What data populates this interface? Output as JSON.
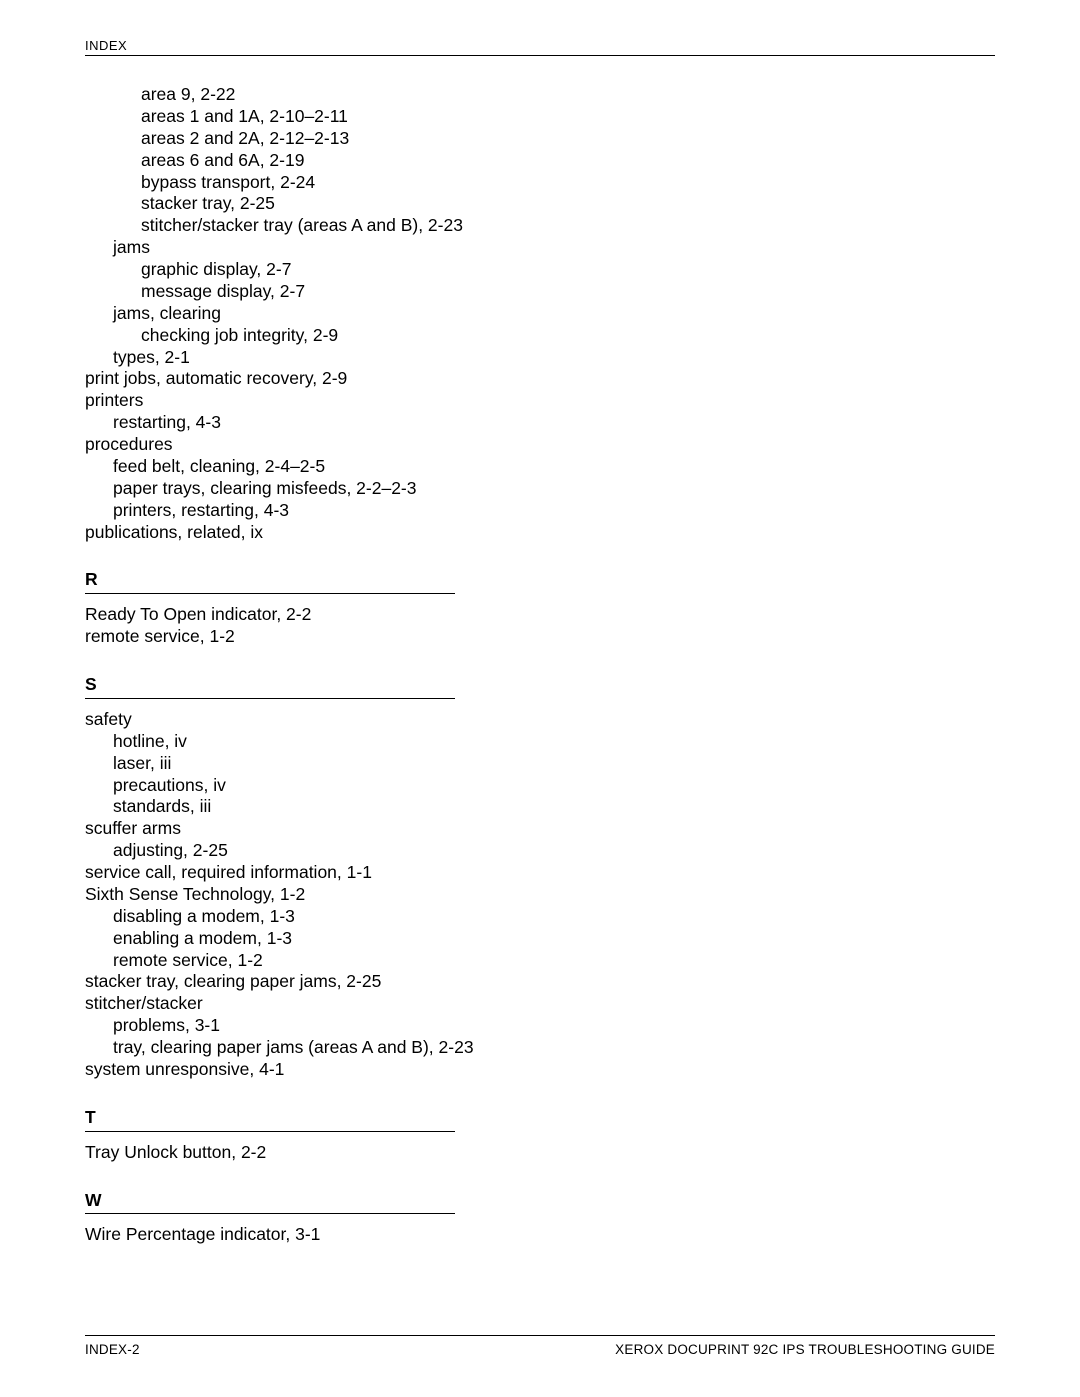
{
  "header": {
    "title": "INDEX"
  },
  "footer": {
    "left": "INDEX-2",
    "right": "XEROX DOCUPRINT 92C IPS TROUBLESHOOTING GUIDE"
  },
  "top_block": [
    {
      "indent": 2,
      "text": "area 9, 2-22"
    },
    {
      "indent": 2,
      "text": "areas 1 and 1A, 2-10–2-11"
    },
    {
      "indent": 2,
      "text": "areas 2 and 2A, 2-12–2-13"
    },
    {
      "indent": 2,
      "text": "areas 6 and 6A, 2-19"
    },
    {
      "indent": 2,
      "text": "bypass transport, 2-24"
    },
    {
      "indent": 2,
      "text": "stacker tray, 2-25"
    },
    {
      "indent": 2,
      "text": "stitcher/stacker tray (areas A and B), 2-23"
    },
    {
      "indent": 1,
      "text": "jams"
    },
    {
      "indent": 2,
      "text": "graphic display, 2-7"
    },
    {
      "indent": 2,
      "text": "message display, 2-7"
    },
    {
      "indent": 1,
      "text": "jams, clearing"
    },
    {
      "indent": 2,
      "text": "checking job integrity, 2-9"
    },
    {
      "indent": 1,
      "text": "types, 2-1"
    },
    {
      "indent": 0,
      "text": "print jobs, automatic recovery, 2-9"
    },
    {
      "indent": 0,
      "text": "printers"
    },
    {
      "indent": 1,
      "text": "restarting, 4-3"
    },
    {
      "indent": 0,
      "text": "procedures"
    },
    {
      "indent": 1,
      "text": "feed belt, cleaning, 2-4–2-5"
    },
    {
      "indent": 1,
      "text": "paper trays, clearing misfeeds, 2-2–2-3"
    },
    {
      "indent": 1,
      "text": "printers, restarting, 4-3"
    },
    {
      "indent": 0,
      "text": "publications, related, ix"
    }
  ],
  "sections": [
    {
      "letter": "R",
      "entries": [
        {
          "indent": 0,
          "text": "Ready To Open indicator, 2-2"
        },
        {
          "indent": 0,
          "text": "remote service, 1-2"
        }
      ]
    },
    {
      "letter": "S",
      "entries": [
        {
          "indent": 0,
          "text": "safety"
        },
        {
          "indent": 1,
          "text": "hotline, iv"
        },
        {
          "indent": 1,
          "text": "laser, iii"
        },
        {
          "indent": 1,
          "text": "precautions, iv"
        },
        {
          "indent": 1,
          "text": "standards, iii"
        },
        {
          "indent": 0,
          "text": "scuffer arms"
        },
        {
          "indent": 1,
          "text": "adjusting, 2-25"
        },
        {
          "indent": 0,
          "text": "service call, required information, 1-1"
        },
        {
          "indent": 0,
          "text": "Sixth Sense Technology, 1-2"
        },
        {
          "indent": 1,
          "text": "disabling a modem, 1-3"
        },
        {
          "indent": 1,
          "text": "enabling a modem, 1-3"
        },
        {
          "indent": 1,
          "text": "remote service, 1-2"
        },
        {
          "indent": 0,
          "text": "stacker tray, clearing paper jams, 2-25"
        },
        {
          "indent": 0,
          "text": "stitcher/stacker"
        },
        {
          "indent": 1,
          "text": "problems, 3-1"
        },
        {
          "indent": 1,
          "text": "tray, clearing paper jams (areas A and B), 2-23"
        },
        {
          "indent": 0,
          "text": "system unresponsive, 4-1"
        }
      ]
    },
    {
      "letter": "T",
      "entries": [
        {
          "indent": 0,
          "text": "Tray Unlock button, 2-2"
        }
      ]
    },
    {
      "letter": "W",
      "entries": [
        {
          "indent": 0,
          "text": "Wire Percentage indicator, 3-1"
        }
      ]
    }
  ]
}
